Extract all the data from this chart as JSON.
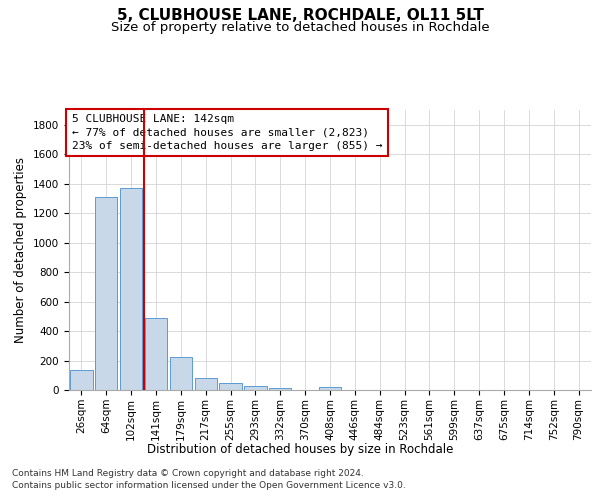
{
  "title": "5, CLUBHOUSE LANE, ROCHDALE, OL11 5LT",
  "subtitle": "Size of property relative to detached houses in Rochdale",
  "xlabel": "Distribution of detached houses by size in Rochdale",
  "ylabel": "Number of detached properties",
  "bar_labels": [
    "26sqm",
    "64sqm",
    "102sqm",
    "141sqm",
    "179sqm",
    "217sqm",
    "255sqm",
    "293sqm",
    "332sqm",
    "370sqm",
    "408sqm",
    "446sqm",
    "484sqm",
    "523sqm",
    "561sqm",
    "599sqm",
    "637sqm",
    "675sqm",
    "714sqm",
    "752sqm",
    "790sqm"
  ],
  "bar_values": [
    135,
    1310,
    1370,
    490,
    225,
    80,
    45,
    28,
    14,
    0,
    20,
    0,
    0,
    0,
    0,
    0,
    0,
    0,
    0,
    0,
    0
  ],
  "bar_color": "#c8d8e8",
  "bar_edgecolor": "#5b9bd5",
  "vline_color": "#cc0000",
  "vline_pos": 2.5,
  "annotation_box_text": "5 CLUBHOUSE LANE: 142sqm\n← 77% of detached houses are smaller (2,823)\n23% of semi-detached houses are larger (855) →",
  "annotation_box_color": "#cc0000",
  "annotation_box_fill": "#ffffff",
  "ylim": [
    0,
    1900
  ],
  "yticks": [
    0,
    200,
    400,
    600,
    800,
    1000,
    1200,
    1400,
    1600,
    1800
  ],
  "background_color": "#ffffff",
  "grid_color": "#cccccc",
  "footer_line1": "Contains HM Land Registry data © Crown copyright and database right 2024.",
  "footer_line2": "Contains public sector information licensed under the Open Government Licence v3.0.",
  "title_fontsize": 11,
  "subtitle_fontsize": 9.5,
  "axis_label_fontsize": 8.5,
  "tick_fontsize": 7.5,
  "annotation_fontsize": 8,
  "footer_fontsize": 6.5
}
